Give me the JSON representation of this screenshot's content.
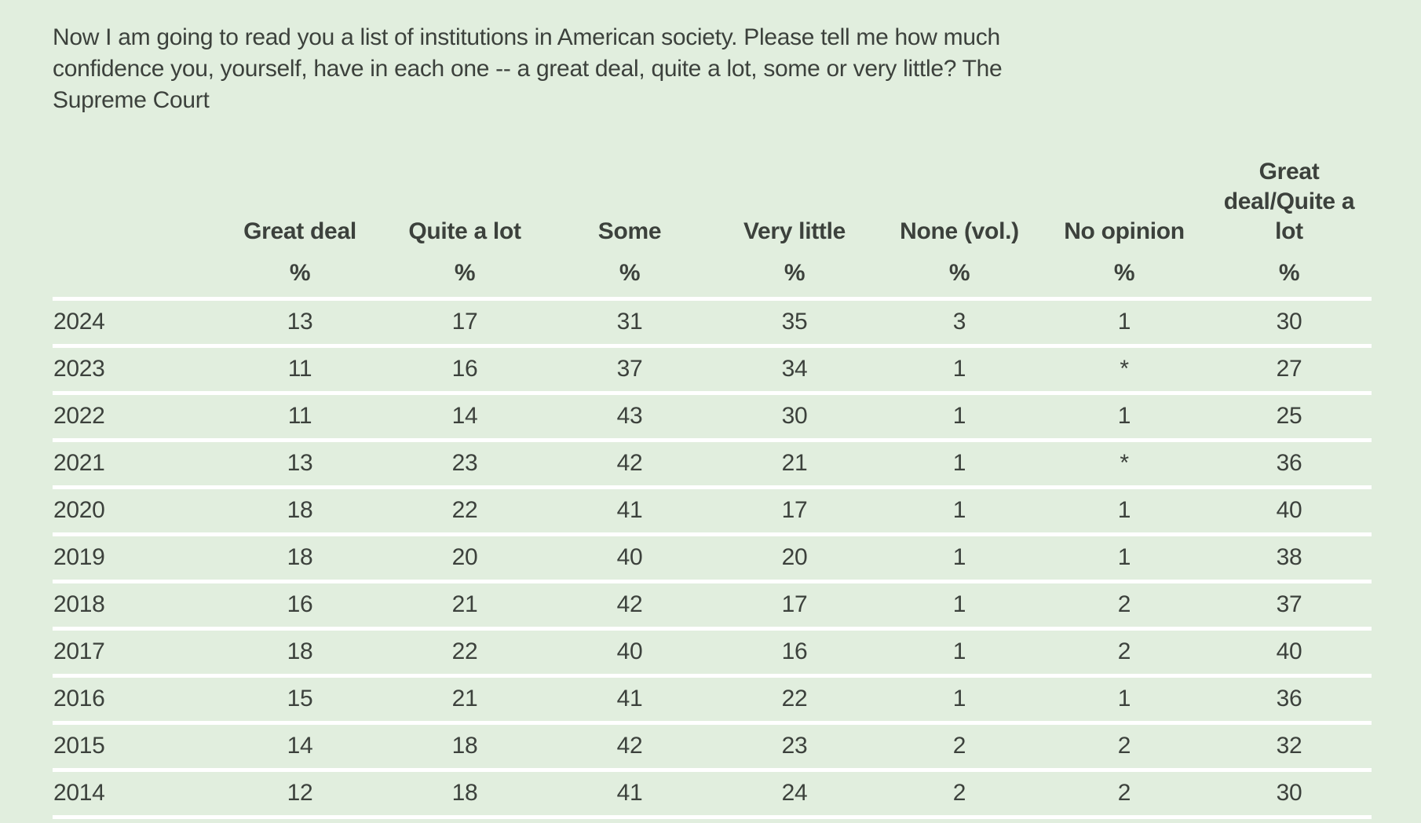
{
  "page": {
    "background": "#e1eede",
    "text_color": "#3c413c",
    "separator_color": "#ffffff"
  },
  "question": {
    "text": "Now I am going to read you a list of institutions in American society. Please tell me how much\nconfidence you, yourself, have in each one -- a great deal, quite a lot, some or very little? The\nSupreme Court"
  },
  "display": {
    "last_header_wrapped": "Great\ndeal/Quite a\nlot"
  },
  "chart_data": {
    "type": "table",
    "title": "Now I am going to read you a list of institutions in American society. Please tell me how much confidence you, yourself, have in each one -- a great deal, quite a lot, some or very little? The Supreme Court",
    "columns": [
      "Great deal",
      "Quite a lot",
      "Some",
      "Very little",
      "None (vol.)",
      "No opinion",
      "Great deal/Quite a lot"
    ],
    "unit": "%",
    "rows": [
      {
        "year": "2024",
        "values": [
          "13",
          "17",
          "31",
          "35",
          "3",
          "1",
          "30"
        ]
      },
      {
        "year": "2023",
        "values": [
          "11",
          "16",
          "37",
          "34",
          "1",
          "*",
          "27"
        ]
      },
      {
        "year": "2022",
        "values": [
          "11",
          "14",
          "43",
          "30",
          "1",
          "1",
          "25"
        ]
      },
      {
        "year": "2021",
        "values": [
          "13",
          "23",
          "42",
          "21",
          "1",
          "*",
          "36"
        ]
      },
      {
        "year": "2020",
        "values": [
          "18",
          "22",
          "41",
          "17",
          "1",
          "1",
          "40"
        ]
      },
      {
        "year": "2019",
        "values": [
          "18",
          "20",
          "40",
          "20",
          "1",
          "1",
          "38"
        ]
      },
      {
        "year": "2018",
        "values": [
          "16",
          "21",
          "42",
          "17",
          "1",
          "2",
          "37"
        ]
      },
      {
        "year": "2017",
        "values": [
          "18",
          "22",
          "40",
          "16",
          "1",
          "2",
          "40"
        ]
      },
      {
        "year": "2016",
        "values": [
          "15",
          "21",
          "41",
          "22",
          "1",
          "1",
          "36"
        ]
      },
      {
        "year": "2015",
        "values": [
          "14",
          "18",
          "42",
          "23",
          "2",
          "2",
          "32"
        ]
      },
      {
        "year": "2014",
        "values": [
          "12",
          "18",
          "41",
          "24",
          "2",
          "2",
          "30"
        ]
      }
    ]
  }
}
